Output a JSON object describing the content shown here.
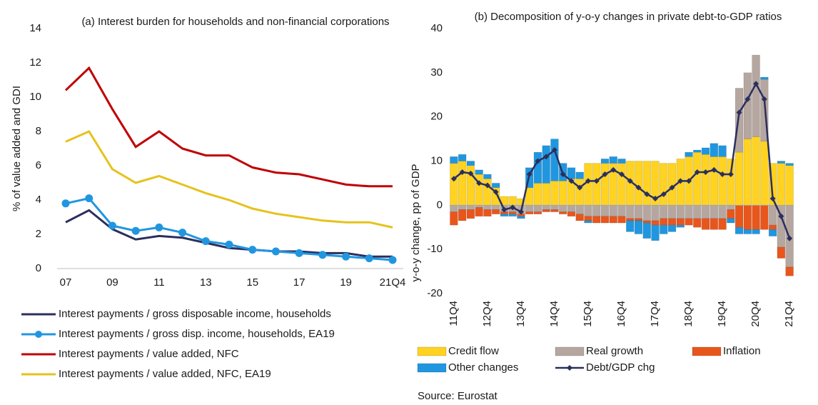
{
  "chart_data": [
    {
      "type": "line",
      "title": "(a) Interest burden for households and non-financial corporations",
      "y_label": "% of value added and GDI",
      "categories": [
        "07",
        null,
        "09",
        null,
        "11",
        null,
        "13",
        null,
        "15",
        null,
        "17",
        null,
        "19",
        null,
        "21Q4"
      ],
      "ylim": [
        0,
        14
      ],
      "yticks": [
        0,
        2,
        4,
        6,
        8,
        10,
        12,
        14
      ],
      "grid": false,
      "legend": "bottom",
      "source": "Source: Eurostat",
      "series": [
        {
          "name": "Interest payments / gross disposable income, households",
          "color": "#2b2f5e",
          "markers": false,
          "values": [
            2.7,
            3.4,
            2.3,
            1.7,
            1.9,
            1.8,
            1.5,
            1.2,
            1.1,
            1.0,
            1.0,
            0.9,
            0.9,
            0.7,
            0.7
          ]
        },
        {
          "name": "Interest payments / gross disp. income, households, EA19",
          "color": "#2196e0",
          "markers": true,
          "values": [
            3.8,
            4.1,
            2.5,
            2.2,
            2.4,
            2.1,
            1.6,
            1.4,
            1.1,
            1.0,
            0.9,
            0.8,
            0.7,
            0.6,
            0.5
          ]
        },
        {
          "name": "Interest payments / value added, NFC",
          "color": "#c00000",
          "markers": false,
          "values": [
            10.4,
            11.7,
            9.3,
            7.1,
            8.0,
            7.0,
            6.6,
            6.6,
            5.9,
            5.6,
            5.5,
            5.2,
            4.9,
            4.8,
            4.8
          ]
        },
        {
          "name": "Interest payments / value added, NFC, EA19",
          "color": "#e6c21c",
          "markers": false,
          "values": [
            7.4,
            8.0,
            5.8,
            5.0,
            5.4,
            4.9,
            4.4,
            4.0,
            3.5,
            3.2,
            3.0,
            2.8,
            2.7,
            2.7,
            2.4
          ]
        }
      ]
    },
    {
      "type": "stacked_bar",
      "title": "(b) Decomposition of y-o-y changes in private debt-to-GDP ratios",
      "y_label": "y-o-y change, pp of GDP",
      "categories": [
        "11Q4",
        null,
        null,
        null,
        "12Q4",
        null,
        null,
        null,
        "13Q4",
        null,
        null,
        null,
        "14Q4",
        null,
        null,
        null,
        "15Q4",
        null,
        null,
        null,
        "16Q4",
        null,
        null,
        null,
        "17Q4",
        null,
        null,
        null,
        "18Q4",
        null,
        null,
        null,
        "19Q4",
        null,
        null,
        null,
        "20Q4",
        null,
        null,
        null,
        "21Q4"
      ],
      "ylim": [
        -20,
        40
      ],
      "yticks": [
        -20,
        -10,
        0,
        10,
        20,
        30,
        40
      ],
      "grid": false,
      "legend": "bottom",
      "source": "Source: Eurostat",
      "series": [
        {
          "name": "Credit flow",
          "color": "#ffd320",
          "type": "bar",
          "values": [
            9.5,
            10,
            9,
            7,
            6,
            4,
            2,
            2,
            1.5,
            4,
            5,
            5,
            5.5,
            5.5,
            6,
            6,
            9.5,
            9.5,
            9.5,
            9.5,
            9.5,
            10,
            10,
            10,
            10,
            9.5,
            9.5,
            10.5,
            11,
            12,
            11.5,
            11,
            11,
            10.5,
            12,
            15,
            15.5,
            14.5,
            9.5,
            9.5,
            9
          ]
        },
        {
          "name": "Real growth",
          "color": "#b5a7a0",
          "type": "bar",
          "values": [
            -1.5,
            -1,
            -1,
            -0.5,
            -1,
            -1,
            -1.5,
            -1.5,
            -2,
            -1.5,
            -1.5,
            -1,
            -1,
            -1.5,
            -1.5,
            -2,
            -2.5,
            -2.5,
            -2.5,
            -2.5,
            -2.5,
            -3,
            -3,
            -3.5,
            -3.5,
            -3,
            -3,
            -3,
            -3,
            -3,
            -3,
            -3,
            -3,
            -1,
            14.5,
            15,
            18.5,
            14,
            -4.5,
            -9.5,
            -14
          ]
        },
        {
          "name": "Inflation",
          "color": "#e8561c",
          "type": "bar",
          "values": [
            -3,
            -2.5,
            -2,
            -2,
            -1.5,
            -1,
            -0.5,
            -0.5,
            -0.5,
            -0.5,
            -0.5,
            -0.5,
            -0.5,
            -0.5,
            -1,
            -1.5,
            -1,
            -1.5,
            -1.5,
            -1.5,
            -1.5,
            -0.5,
            -0.5,
            -0.5,
            -1,
            -1.5,
            -1.5,
            -1.5,
            -1.5,
            -2,
            -2.5,
            -2.5,
            -2.5,
            -2,
            -5,
            -5.5,
            -5.5,
            -5.5,
            -1,
            -2.5,
            -2
          ]
        },
        {
          "name": "Other changes",
          "color": "#1f97e0",
          "type": "bar",
          "values": [
            1.5,
            1.5,
            1,
            1,
            1,
            1,
            -0.5,
            -0.5,
            -0.5,
            4.5,
            7,
            8.5,
            9.5,
            4,
            2.5,
            1.5,
            -0.5,
            0,
            1,
            1.5,
            1,
            -2.5,
            -3,
            -3.5,
            -3.5,
            -2,
            -1.5,
            -0.5,
            1,
            0.5,
            1.5,
            3,
            2.5,
            -1,
            -1.5,
            -1,
            -1,
            0.5,
            -1.5,
            0.5,
            0.5
          ]
        },
        {
          "name": "Debt/GDP chg",
          "color": "#2b2f5e",
          "type": "line",
          "values": [
            6,
            7.5,
            7.2,
            5,
            4.5,
            3,
            -1,
            -0.5,
            -1.5,
            7,
            10,
            11,
            12.5,
            7,
            5.5,
            4,
            5.5,
            5.5,
            7,
            8,
            7,
            5.5,
            4,
            2.5,
            1.5,
            2.5,
            4,
            5.5,
            5.5,
            7.5,
            7.5,
            8,
            7,
            7,
            21,
            24,
            27.5,
            24,
            1.5,
            -2.5,
            -7.5
          ]
        }
      ]
    }
  ]
}
